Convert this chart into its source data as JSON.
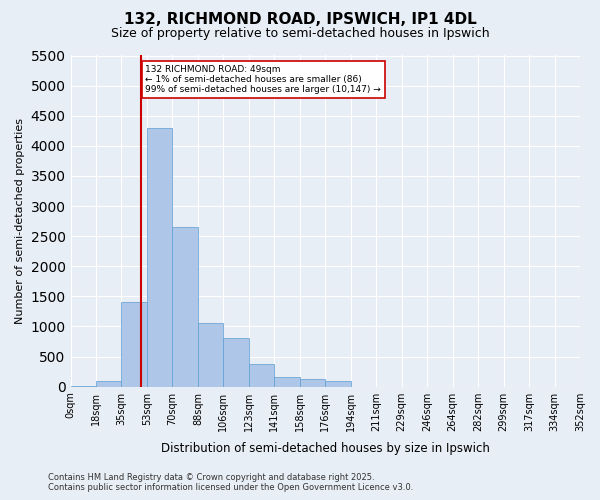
{
  "title": "132, RICHMOND ROAD, IPSWICH, IP1 4DL",
  "subtitle": "Size of property relative to semi-detached houses in Ipswich",
  "xlabel": "Distribution of semi-detached houses by size in Ipswich",
  "ylabel": "Number of semi-detached properties",
  "footer_line1": "Contains HM Land Registry data © Crown copyright and database right 2025.",
  "footer_line2": "Contains public sector information licensed under the Open Government Licence v3.0.",
  "annotation_line1": "132 RICHMOND ROAD: 49sqm",
  "annotation_line2": "← 1% of semi-detached houses are smaller (86)",
  "annotation_line3": "99% of semi-detached houses are larger (10,147) →",
  "bin_labels": [
    "0sqm",
    "18sqm",
    "35sqm",
    "53sqm",
    "70sqm",
    "88sqm",
    "106sqm",
    "123sqm",
    "141sqm",
    "158sqm",
    "176sqm",
    "194sqm",
    "211sqm",
    "229sqm",
    "246sqm",
    "264sqm",
    "282sqm",
    "299sqm",
    "317sqm",
    "334sqm",
    "352sqm"
  ],
  "bar_values": [
    10,
    86,
    1400,
    4300,
    2650,
    1050,
    800,
    370,
    160,
    130,
    90,
    0,
    0,
    0,
    0,
    0,
    0,
    0,
    0,
    0
  ],
  "bar_color": "#aec6e8",
  "bar_edge_color": "#5a9fd4",
  "red_line_color": "#cc0000",
  "annotation_box_color": "#cc0000",
  "background_color": "#e8eef5",
  "grid_color": "#ffffff",
  "ylim": [
    0,
    5500
  ],
  "yticks": [
    0,
    500,
    1000,
    1500,
    2000,
    2500,
    3000,
    3500,
    4000,
    4500,
    5000,
    5500
  ]
}
